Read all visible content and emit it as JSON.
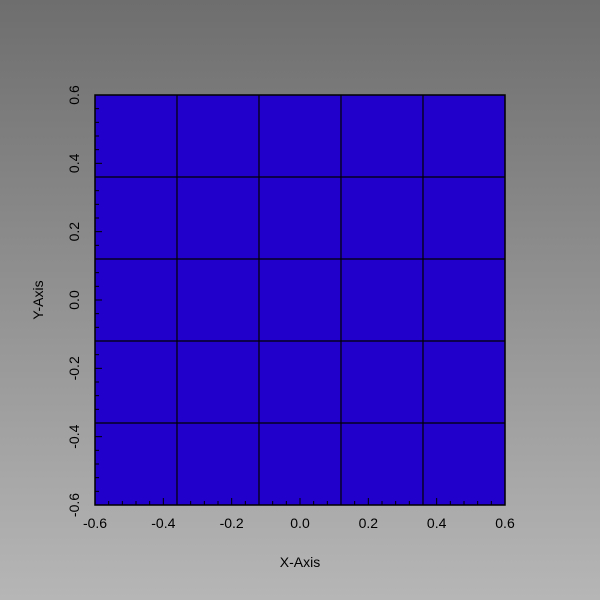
{
  "chart_data": {
    "type": "heatmap",
    "title": "",
    "xlabel": "X-Axis",
    "ylabel": "Y-Axis",
    "xlim": [
      -0.6,
      0.6
    ],
    "ylim": [
      -0.6,
      0.6
    ],
    "xticks": [
      "-0.6",
      "-0.4",
      "-0.2",
      "0.0",
      "0.2",
      "0.4",
      "0.6"
    ],
    "yticks": [
      "-0.6",
      "-0.4",
      "-0.2",
      "0.0",
      "0.2",
      "0.4",
      "0.6"
    ],
    "grid": true,
    "grid_divisions": 5,
    "fill_color": "#2200cc",
    "grid_color": "#000000"
  }
}
